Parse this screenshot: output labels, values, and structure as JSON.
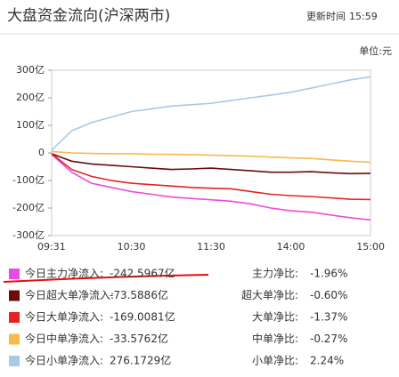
{
  "chart_data": {
    "type": "line",
    "title": "大盘资金流向(沪深两市)",
    "update_label": "更新时间",
    "update_time": "15:59",
    "unit_label": "单位:元",
    "categories": [
      "09:31",
      null,
      null,
      null,
      "10:30",
      null,
      null,
      null,
      "11:30",
      null,
      null,
      null,
      "14:00",
      null,
      null,
      null,
      "15:00"
    ],
    "ylim": [
      -300,
      300
    ],
    "yticks": [
      {
        "value": 300,
        "label": "300亿"
      },
      {
        "value": 200,
        "label": "200亿"
      },
      {
        "value": 100,
        "label": "100亿"
      },
      0,
      {
        "value": -100,
        "label": "-100亿"
      },
      {
        "value": -200,
        "label": "-200亿"
      },
      {
        "value": -300,
        "label": "-300亿"
      }
    ],
    "grid": false,
    "series": [
      {
        "name": "今日主力净流入:",
        "color": "#e84ce0",
        "values": [
          -5,
          -70,
          -110,
          -125,
          -140,
          -150,
          -160,
          -165,
          -170,
          -175,
          -185,
          -200,
          -210,
          -215,
          -225,
          -235,
          -243
        ],
        "total": -242.5967,
        "total_label": "-242.5967亿",
        "ratio_name": "主力净比:",
        "ratio": -1.96,
        "ratio_label": "-1.96%"
      },
      {
        "name": "今日超大单净流入:",
        "color": "#6b0b0b",
        "values": [
          -3,
          -30,
          -40,
          -45,
          -50,
          -55,
          -60,
          -58,
          -55,
          -60,
          -65,
          -70,
          -70,
          -68,
          -72,
          -75,
          -74
        ],
        "total": -73.5886,
        "total_label": "-73.5886亿",
        "ratio_name": "超大单净比:",
        "ratio": -0.6,
        "ratio_label": "-0.60%"
      },
      {
        "name": "今日大单净流入:",
        "color": "#e52222",
        "values": [
          -3,
          -60,
          -85,
          -100,
          -110,
          -115,
          -120,
          -125,
          -128,
          -130,
          -140,
          -150,
          -155,
          -158,
          -163,
          -168,
          -169
        ],
        "total": -169.0081,
        "total_label": "-169.0081亿",
        "ratio_name": "大单净比:",
        "ratio": -1.37,
        "ratio_label": "-1.37%"
      },
      {
        "name": "今日中单净流入:",
        "color": "#f5b94c",
        "values": [
          5,
          0,
          -2,
          -3,
          -3,
          -5,
          -5,
          -6,
          -8,
          -10,
          -12,
          -15,
          -18,
          -20,
          -25,
          -30,
          -34
        ],
        "total": -33.5762,
        "total_label": "-33.5762亿",
        "ratio_name": "中单净比:",
        "ratio": -0.27,
        "ratio_label": "-0.27%"
      },
      {
        "name": "今日小单净流入:",
        "color": "#a9c9e9",
        "values": [
          10,
          80,
          110,
          130,
          150,
          160,
          170,
          175,
          180,
          190,
          200,
          210,
          220,
          235,
          250,
          265,
          276
        ],
        "total": 276.1729,
        "total_label": "276.1729亿",
        "ratio_name": "小单净比:",
        "ratio": 2.24,
        "ratio_label": "2.24%"
      }
    ]
  }
}
